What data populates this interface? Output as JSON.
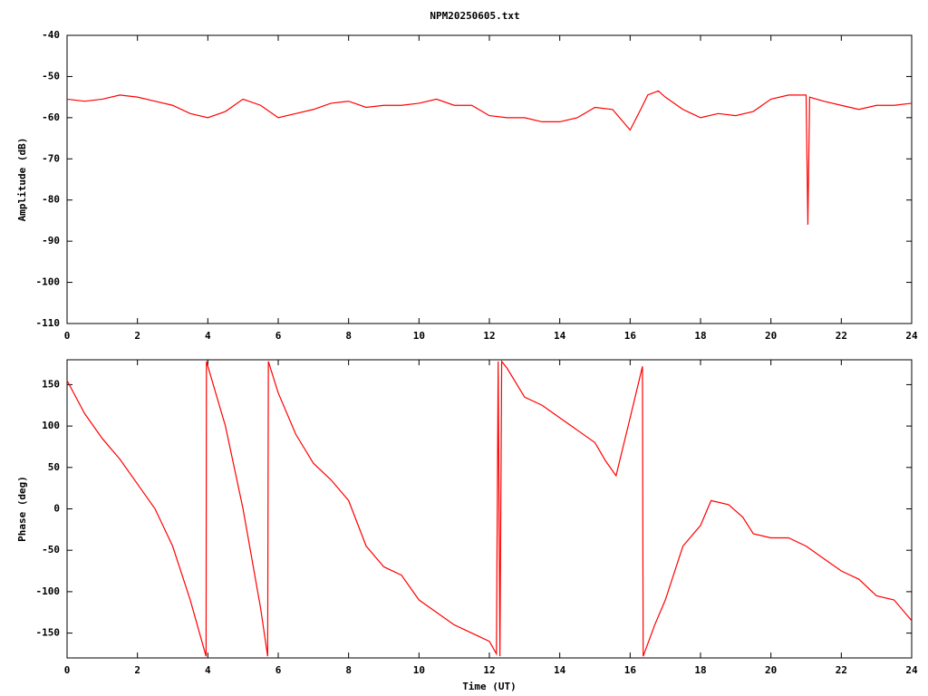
{
  "chart_data": [
    {
      "type": "line",
      "title": "NPM20250605.txt",
      "ylabel": "Amplitude (dB)",
      "color": "#ff0000",
      "x": [
        0,
        0.5,
        1,
        1.5,
        2,
        2.5,
        3,
        3.5,
        4,
        4.5,
        5,
        5.5,
        6,
        6.5,
        7,
        7.5,
        8,
        8.5,
        9,
        9.5,
        10,
        10.5,
        11,
        11.5,
        12,
        12.5,
        13,
        13.5,
        14,
        14.5,
        15,
        15.5,
        16,
        16.3,
        16.5,
        16.8,
        17,
        17.5,
        18,
        18.5,
        19,
        19.5,
        20,
        20.5,
        21,
        21.05,
        21.1,
        21.5,
        22,
        22.5,
        23,
        23.5,
        24
      ],
      "values": [
        -55.5,
        -56,
        -55.5,
        -54.5,
        -55,
        -56,
        -57,
        -59,
        -60,
        -58.5,
        -55.5,
        -57,
        -60,
        -59,
        -58,
        -56.5,
        -56,
        -57.5,
        -57,
        -57,
        -56.5,
        -55.5,
        -57,
        -57,
        -59.5,
        -60,
        -60,
        -61,
        -61,
        -60,
        -57.5,
        -58,
        -63,
        -58,
        -54.5,
        -53.5,
        -55,
        -58,
        -60,
        -59,
        -59.5,
        -58.5,
        -55.5,
        -54.5,
        -54.5,
        -86,
        -55,
        -56,
        -57,
        -58,
        -57,
        -57,
        -56.5
      ],
      "xlim": [
        0,
        24
      ],
      "ylim": [
        -110,
        -40
      ],
      "xticks": [
        0,
        2,
        4,
        6,
        8,
        10,
        12,
        14,
        16,
        18,
        20,
        22,
        24
      ],
      "yticks": [
        -40,
        -50,
        -60,
        -70,
        -80,
        -90,
        -100,
        -110
      ]
    },
    {
      "type": "line",
      "ylabel": "Phase (deg)",
      "xlabel": "Time (UT)",
      "color": "#ff0000",
      "x": [
        0,
        0.5,
        1,
        1.5,
        2,
        2.5,
        3,
        3.5,
        3.95,
        3.96,
        4.5,
        5,
        5.5,
        5.7,
        5.72,
        6,
        6.5,
        7,
        7.5,
        8,
        8.5,
        9,
        9.5,
        10,
        10.5,
        11,
        11.5,
        12,
        12.2,
        12.25,
        12.3,
        12.35,
        12.5,
        13,
        13.5,
        14,
        14.5,
        15,
        15.3,
        15.6,
        16,
        16.35,
        16.37,
        16.7,
        17,
        17.5,
        18,
        18.3,
        18.8,
        19.2,
        19.5,
        20,
        20.5,
        21,
        21.5,
        22,
        22.5,
        23,
        23.5,
        24
      ],
      "values": [
        155,
        115,
        85,
        60,
        30,
        0,
        -45,
        -110,
        -178,
        178,
        100,
        0,
        -120,
        -178,
        178,
        140,
        90,
        55,
        35,
        10,
        -45,
        -70,
        -80,
        -110,
        -125,
        -140,
        -150,
        -160,
        -175,
        178,
        -178,
        178,
        170,
        135,
        125,
        110,
        95,
        80,
        58,
        40,
        110,
        172,
        -178,
        -140,
        -110,
        -45,
        -20,
        10,
        5,
        -10,
        -30,
        -35,
        -35,
        -45,
        -60,
        -75,
        -85,
        -105,
        -110,
        -135
      ],
      "xlim": [
        0,
        24
      ],
      "ylim": [
        -180,
        180
      ],
      "xticks": [
        0,
        2,
        4,
        6,
        8,
        10,
        12,
        14,
        16,
        18,
        20,
        22,
        24
      ],
      "yticks": [
        150,
        100,
        50,
        0,
        -50,
        -100,
        -150
      ]
    }
  ]
}
